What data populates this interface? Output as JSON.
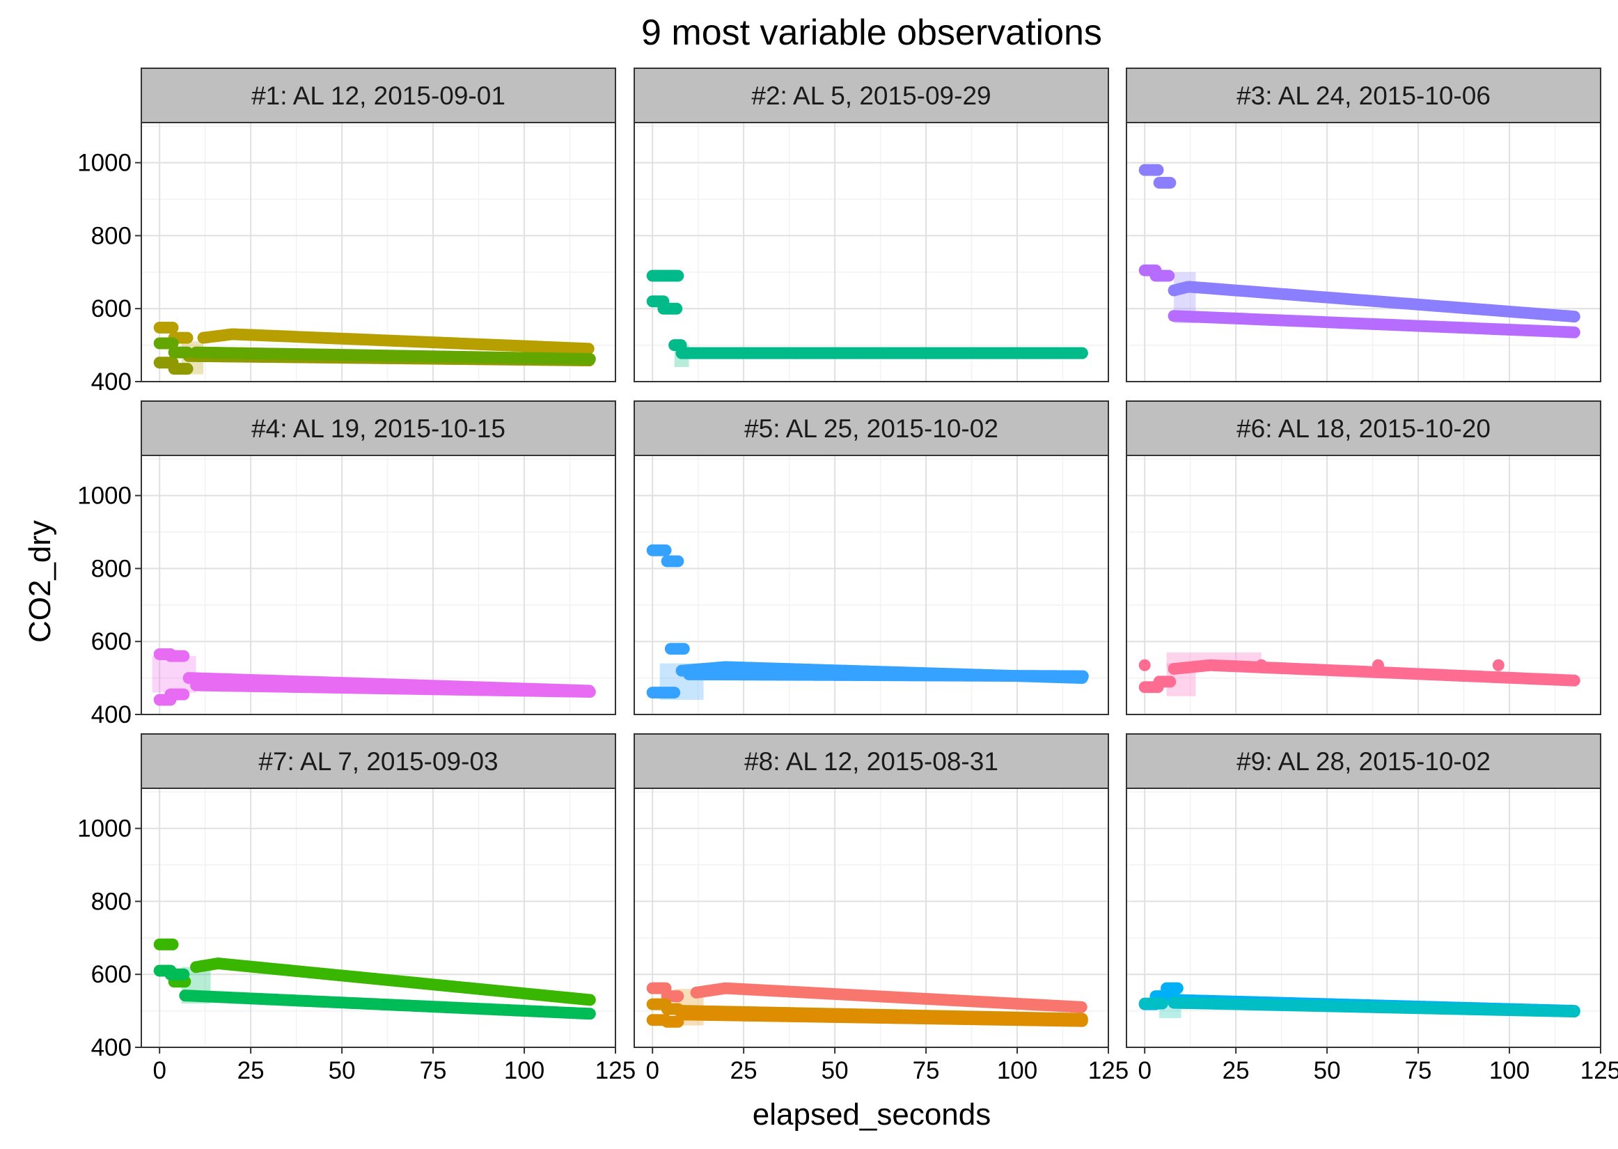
{
  "chart_data": {
    "type": "scatter",
    "title": "9 most variable observations",
    "xlabel": "elapsed_seconds",
    "ylabel": "CO2_dry",
    "xlim": [
      -5,
      125
    ],
    "ylim": [
      400,
      1110
    ],
    "x_ticks": [
      0,
      25,
      50,
      75,
      100,
      125
    ],
    "y_ticks": [
      400,
      600,
      800,
      1000
    ],
    "grid": true,
    "legend": "none",
    "panels": [
      {
        "label": "#1: AL 12, 2015-09-01",
        "fits": [
          {
            "x0": 6,
            "x1": 12,
            "lo": 420,
            "hi": 510,
            "color": "#B79F00"
          }
        ],
        "series": [
          {
            "color": "#B79F00",
            "steps": [
              [
                0,
                4,
                548
              ],
              [
                4,
                8,
                520
              ]
            ],
            "curve": [
              12,
              118,
              520,
              490,
              20,
              530
            ]
          },
          {
            "color": "#8E9A00",
            "steps": [
              [
                0,
                4,
                452
              ],
              [
                4,
                8,
                435
              ]
            ],
            "curve": [
              8,
              118,
              470,
              458
            ]
          },
          {
            "color": "#63A600",
            "steps": [
              [
                0,
                4,
                505
              ],
              [
                4,
                8,
                480
              ]
            ],
            "curve": [
              10,
              118,
              480,
              462
            ]
          }
        ]
      },
      {
        "label": "#2: AL 5, 2015-09-29",
        "fits": [
          {
            "x0": 6,
            "x1": 10,
            "lo": 440,
            "hi": 500,
            "color": "#00BF7D"
          }
        ],
        "series": [
          {
            "color": "#00BA8A",
            "steps": [
              [
                0,
                4,
                690
              ],
              [
                4,
                7,
                690
              ]
            ],
            "curve": [
              8,
              118,
              478,
              478
            ]
          },
          {
            "color": "#00BA8A",
            "steps": [
              [
                0,
                3,
                620
              ],
              [
                3,
                7,
                600
              ],
              [
                6,
                8,
                500
              ]
            ],
            "curve": [
              8,
              118,
              478,
              478
            ]
          }
        ]
      },
      {
        "label": "#3: AL 24, 2015-10-06",
        "fits": [
          {
            "x0": 8,
            "x1": 14,
            "lo": 560,
            "hi": 700,
            "color": "#8B7EFF"
          }
        ],
        "series": [
          {
            "color": "#8B7EFF",
            "steps": [
              [
                0,
                4,
                980
              ],
              [
                4,
                7,
                945
              ]
            ],
            "curve": [
              8,
              118,
              650,
              578,
              12,
              660
            ]
          },
          {
            "color": "#B66DFF",
            "steps": [
              [
                0,
                3,
                705
              ],
              [
                3,
                7,
                690
              ]
            ],
            "curve": [
              8,
              118,
              580,
              535
            ]
          }
        ]
      },
      {
        "label": "#4: AL 19, 2015-10-15",
        "fits": [
          {
            "x0": -2,
            "x1": 10,
            "lo": 460,
            "hi": 560,
            "color": "#F066EA"
          }
        ],
        "series": [
          {
            "color": "#E76BF3",
            "steps": [
              [
                0,
                3,
                565
              ],
              [
                3,
                7,
                560
              ]
            ],
            "curve": [
              8,
              118,
              500,
              465
            ]
          },
          {
            "color": "#E76BF3",
            "steps": [
              [
                0,
                3,
                440
              ],
              [
                3,
                7,
                455
              ]
            ],
            "curve": [
              10,
              118,
              480,
              462
            ]
          }
        ]
      },
      {
        "label": "#5: AL 25, 2015-10-02",
        "fits": [
          {
            "x0": 2,
            "x1": 14,
            "lo": 440,
            "hi": 540,
            "color": "#35A2FF"
          }
        ],
        "series": [
          {
            "color": "#35A2FF",
            "steps": [
              [
                0,
                4,
                850
              ],
              [
                4,
                7,
                820
              ],
              [
                5,
                9,
                580
              ]
            ],
            "curve": [
              8,
              118,
              520,
              500,
              20,
              530
            ]
          },
          {
            "color": "#35A2FF",
            "steps": [
              [
                0,
                6,
                460
              ]
            ],
            "curve": [
              10,
              118,
              510,
              505
            ]
          }
        ]
      },
      {
        "label": "#6: AL 18, 2015-10-20",
        "fits": [
          {
            "x0": 6,
            "x1": 32,
            "lo": 530,
            "hi": 570,
            "color": "#FF62BC"
          },
          {
            "x0": 6,
            "x1": 14,
            "lo": 450,
            "hi": 540,
            "color": "#FF62BC"
          }
        ],
        "series": [
          {
            "color": "#FF6C91",
            "steps": [
              [
                0,
                4,
                475
              ],
              [
                4,
                7,
                490
              ]
            ],
            "curve": [
              8,
              118,
              525,
              493,
              18,
              535
            ]
          },
          {
            "color": "#FF6C91",
            "points": [
              [
                0,
                535
              ],
              [
                32,
                535
              ],
              [
                64,
                535
              ],
              [
                97,
                535
              ]
            ]
          }
        ]
      },
      {
        "label": "#7: AL 7, 2015-09-03",
        "fits": [
          {
            "x0": 6,
            "x1": 14,
            "lo": 520,
            "hi": 620,
            "color": "#00BE67"
          }
        ],
        "series": [
          {
            "color": "#39B600",
            "steps": [
              [
                0,
                4,
                682
              ],
              [
                4,
                7,
                580
              ]
            ],
            "curve": [
              10,
              118,
              620,
              530,
              16,
              630
            ]
          },
          {
            "color": "#00BC56",
            "steps": [
              [
                0,
                3,
                610
              ],
              [
                3,
                7,
                600
              ]
            ],
            "curve": [
              7,
              118,
              542,
              492
            ]
          }
        ]
      },
      {
        "label": "#8: AL 12, 2015-08-31",
        "fits": [
          {
            "x0": 6,
            "x1": 14,
            "lo": 460,
            "hi": 560,
            "color": "#E58700"
          }
        ],
        "series": [
          {
            "color": "#F8766D",
            "steps": [
              [
                0,
                4,
                562
              ],
              [
                4,
                7,
                540
              ]
            ],
            "curve": [
              12,
              118,
              550,
              510,
              20,
              562
            ]
          },
          {
            "color": "#D89000",
            "steps": [
              [
                0,
                4,
                518
              ],
              [
                4,
                7,
                505
              ]
            ],
            "curve": [
              8,
              118,
              500,
              478
            ]
          },
          {
            "color": "#DE8C00",
            "steps": [
              [
                0,
                4,
                475
              ],
              [
                4,
                7,
                470
              ]
            ],
            "curve": [
              8,
              118,
              490,
              472
            ]
          }
        ]
      },
      {
        "label": "#9: AL 28, 2015-10-02",
        "fits": [
          {
            "x0": 4,
            "x1": 10,
            "lo": 480,
            "hi": 560,
            "color": "#00C1AA"
          }
        ],
        "series": [
          {
            "color": "#00B0F6",
            "steps": [
              [
                0,
                3,
                518
              ],
              [
                3,
                6,
                540
              ],
              [
                6,
                9,
                562
              ]
            ],
            "curve": [
              8,
              118,
              530,
              500
            ]
          },
          {
            "color": "#00BFC4",
            "steps": [
              [
                0,
                5,
                520
              ]
            ],
            "curve": [
              8,
              118,
              522,
              498
            ]
          }
        ]
      }
    ]
  }
}
